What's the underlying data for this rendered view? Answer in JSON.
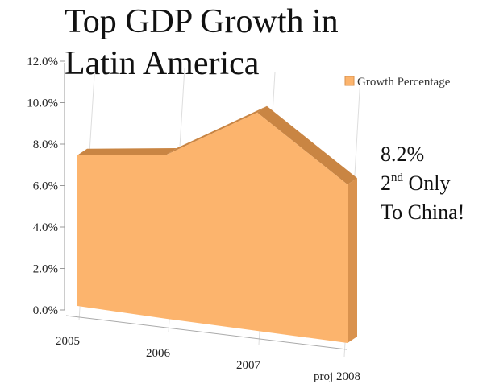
{
  "chart_data": {
    "type": "area",
    "title_lines": [
      "Top GDP Growth in",
      "Latin America"
    ],
    "categories": [
      "2005",
      "2006",
      "2007",
      "proj 2008"
    ],
    "series": [
      {
        "name": "Growth Percentage",
        "values": [
          7.8,
          8.5,
          11.3,
          8.2
        ]
      }
    ],
    "y_ticks": [
      "0.0%",
      "2.0%",
      "4.0%",
      "6.0%",
      "8.0%",
      "10.0%",
      "12.0%"
    ],
    "ylim": [
      0,
      12
    ],
    "grid": "vertical",
    "legend_position": "top-right",
    "colors": {
      "front": "#fcb46d",
      "side": "#d9924e",
      "top": "#c98543",
      "grid": "#dddddd"
    }
  },
  "annotation": {
    "line1": "8.2%",
    "line2_num": "2",
    "line2_sup": "nd",
    "line2_rest": " Only",
    "line3": "To China!"
  }
}
